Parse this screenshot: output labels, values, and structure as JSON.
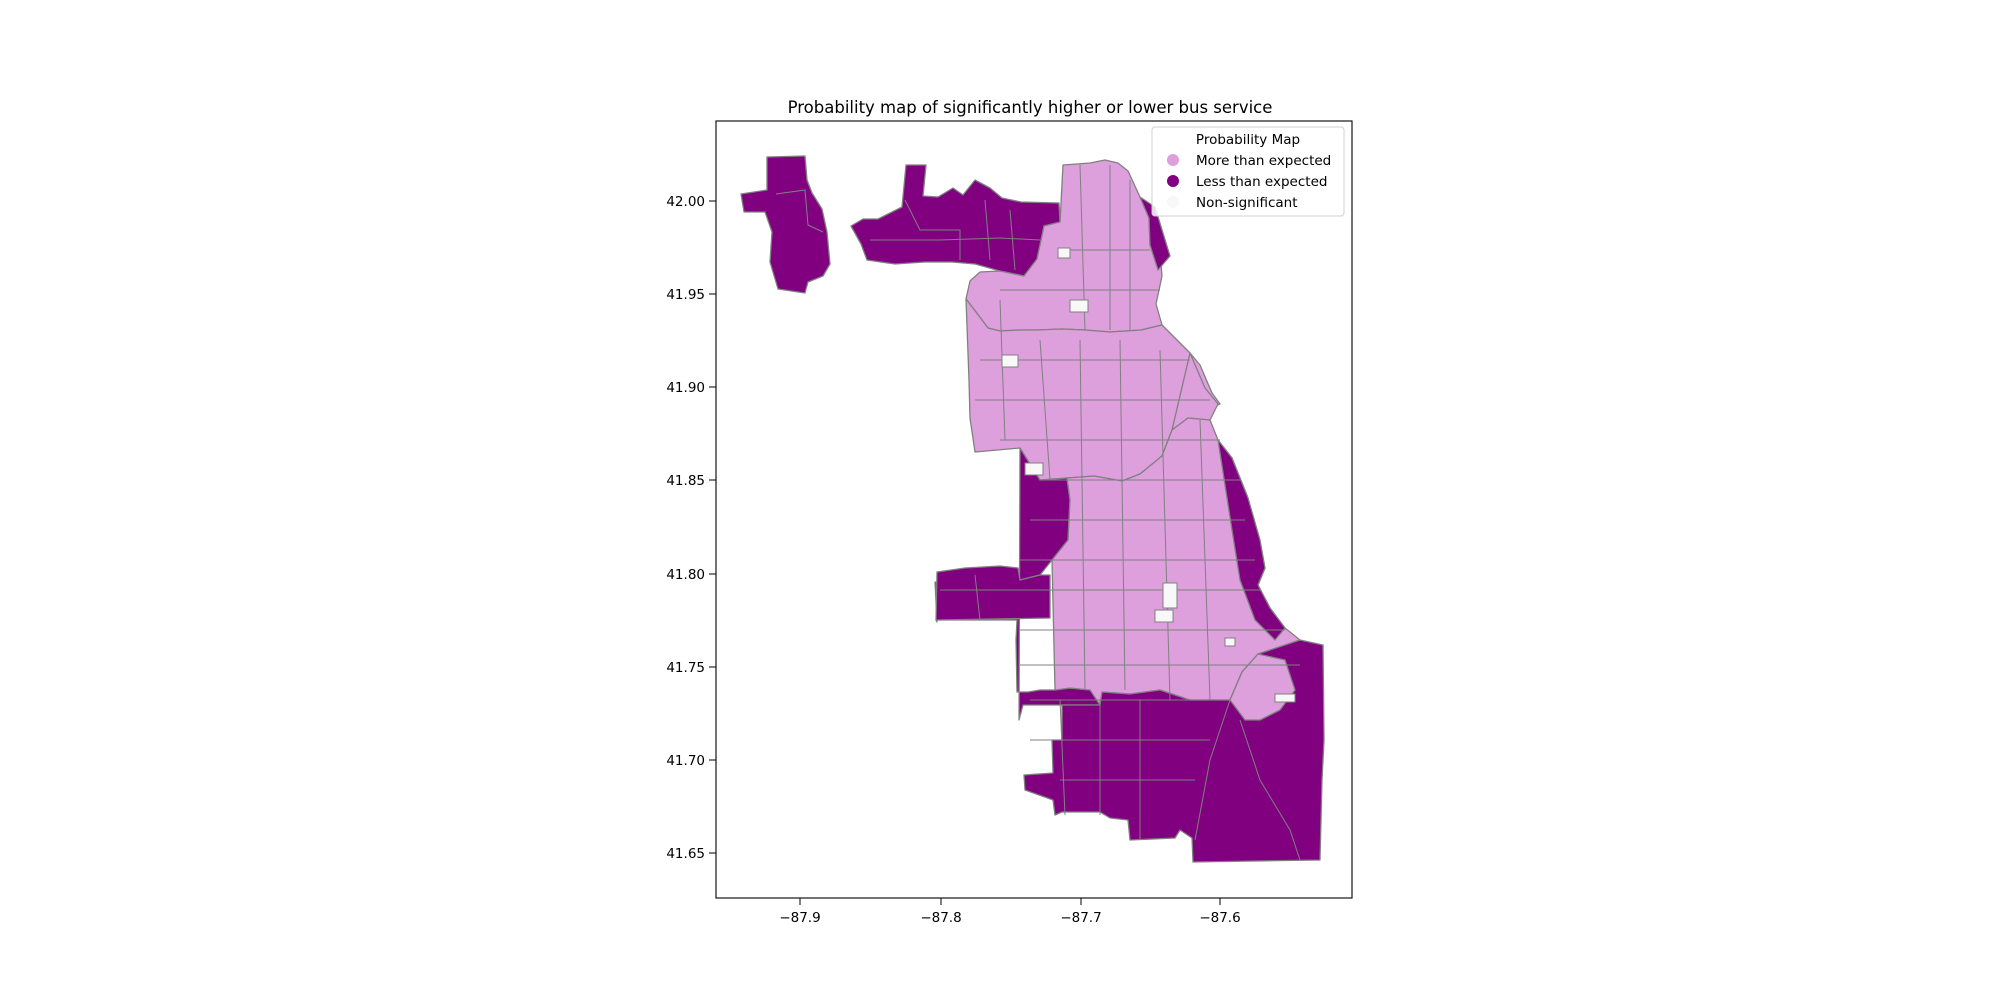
{
  "title": "Probability map of significantly higher or lower bus service",
  "colors": {
    "more": "#dda0dd",
    "less": "#800080",
    "nonsig": "#f8f8f8",
    "edge": "#808080",
    "background": "#ffffff"
  },
  "legend": {
    "title": "Probability Map",
    "placement": "top-right",
    "items": [
      {
        "label": "More than expected",
        "key": "more"
      },
      {
        "label": "Less than expected",
        "key": "less"
      },
      {
        "label": "Non-significant",
        "key": "nonsig"
      }
    ]
  },
  "chart_data": {
    "type": "map",
    "title": "Probability map of significantly higher or lower bus service",
    "x_ticks": [
      -87.9,
      -87.8,
      -87.7,
      -87.6
    ],
    "x_tick_labels": [
      "−87.9",
      "−87.8",
      "−87.7",
      "−87.6"
    ],
    "y_ticks": [
      41.65,
      41.7,
      41.75,
      41.8,
      41.85,
      41.9,
      41.95,
      42.0
    ],
    "y_tick_labels": [
      "41.65",
      "41.70",
      "41.75",
      "41.80",
      "41.85",
      "41.90",
      "41.95",
      "42.00"
    ],
    "xlim": [
      -87.96,
      -87.506
    ],
    "ylim": [
      41.625,
      42.042
    ],
    "grid": false,
    "categories": [
      "More than expected",
      "Less than expected",
      "Non-significant"
    ]
  }
}
